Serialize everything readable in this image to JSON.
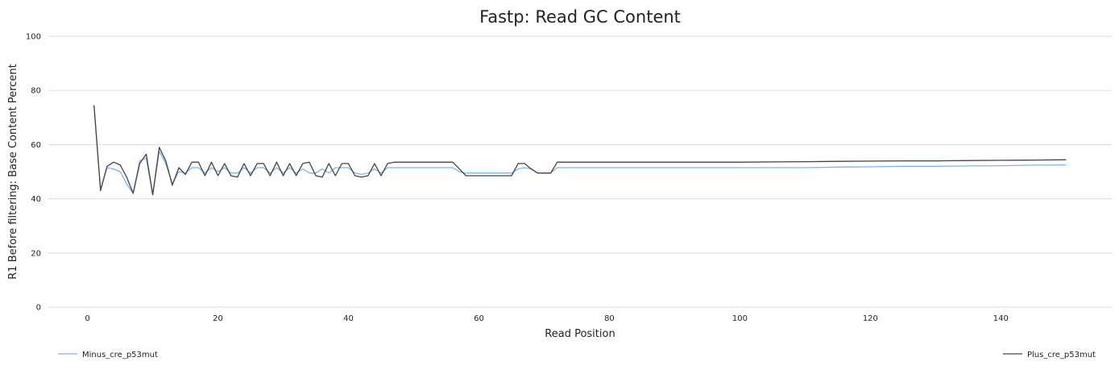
{
  "chart_data": {
    "type": "line",
    "title": "Fastp: Read GC Content",
    "xlabel": "Read Position",
    "ylabel": "R1 Before filtering: Base Content Percent",
    "xlim": [
      -6,
      157
    ],
    "ylim": [
      0,
      100
    ],
    "xticks": [
      0,
      20,
      40,
      60,
      80,
      100,
      120,
      140
    ],
    "yticks": [
      0,
      20,
      40,
      60,
      80,
      100
    ],
    "grid": "horizontal",
    "legend_placement": "bottom",
    "series": [
      {
        "name": "Minus_cre_p53mut",
        "color": "#7cb5ec",
        "points": [
          [
            1,
            74.5
          ],
          [
            2,
            43.5
          ],
          [
            3,
            51.5
          ],
          [
            4,
            51
          ],
          [
            5,
            50
          ],
          [
            6,
            45.5
          ],
          [
            7,
            42
          ],
          [
            8,
            54
          ],
          [
            9,
            55
          ],
          [
            10,
            41.5
          ],
          [
            11,
            57.5
          ],
          [
            12,
            53
          ],
          [
            13,
            45.5
          ],
          [
            14,
            50
          ],
          [
            15,
            49.5
          ],
          [
            16,
            51.5
          ],
          [
            17,
            51.5
          ],
          [
            18,
            49.5
          ],
          [
            19,
            51.5
          ],
          [
            20,
            50
          ],
          [
            21,
            51.5
          ],
          [
            22,
            49.5
          ],
          [
            23,
            49.5
          ],
          [
            24,
            51.5
          ],
          [
            25,
            49.5
          ],
          [
            26,
            51.5
          ],
          [
            27,
            51.5
          ],
          [
            28,
            49.5
          ],
          [
            29,
            51.5
          ],
          [
            30,
            49.5
          ],
          [
            31,
            51.5
          ],
          [
            32,
            49.5
          ],
          [
            33,
            51
          ],
          [
            34,
            49.5
          ],
          [
            35,
            49.5
          ],
          [
            36,
            51
          ],
          [
            37,
            49.5
          ],
          [
            38,
            51.5
          ],
          [
            39,
            51.5
          ],
          [
            40,
            51.5
          ],
          [
            41,
            49.5
          ],
          [
            42,
            49
          ],
          [
            43,
            49.5
          ],
          [
            44,
            51
          ],
          [
            45,
            49.5
          ],
          [
            46,
            51.5
          ],
          [
            47,
            51.5
          ],
          [
            48,
            51.5
          ],
          [
            49,
            51.5
          ],
          [
            50,
            51.5
          ],
          [
            51,
            51.5
          ],
          [
            52,
            51.5
          ],
          [
            53,
            51.5
          ],
          [
            54,
            51.5
          ],
          [
            55,
            51.5
          ],
          [
            56,
            51.5
          ],
          [
            57,
            50
          ],
          [
            58,
            49.5
          ],
          [
            59,
            49.5
          ],
          [
            60,
            49.5
          ],
          [
            61,
            49.5
          ],
          [
            62,
            49.5
          ],
          [
            63,
            49.5
          ],
          [
            64,
            49.5
          ],
          [
            65,
            49.5
          ],
          [
            66,
            51
          ],
          [
            67,
            51.5
          ],
          [
            68,
            51
          ],
          [
            69,
            49.5
          ],
          [
            70,
            49.5
          ],
          [
            71,
            49.5
          ],
          [
            72,
            51.5
          ],
          [
            73,
            51.5
          ],
          [
            74,
            51.5
          ],
          [
            75,
            51.5
          ],
          [
            76,
            51.5
          ],
          [
            77,
            51.5
          ],
          [
            78,
            51.5
          ],
          [
            79,
            51.5
          ],
          [
            80,
            51.5
          ],
          [
            85,
            51.5
          ],
          [
            90,
            51.5
          ],
          [
            95,
            51.5
          ],
          [
            100,
            51.5
          ],
          [
            105,
            51.5
          ],
          [
            110,
            51.5
          ],
          [
            115,
            51.7
          ],
          [
            120,
            51.8
          ],
          [
            125,
            52
          ],
          [
            130,
            52
          ],
          [
            135,
            52.1
          ],
          [
            140,
            52.2
          ],
          [
            145,
            52.4
          ],
          [
            150,
            52.5
          ]
        ]
      },
      {
        "name": "Plus_cre_p53mut",
        "color": "#434348",
        "points": [
          [
            1,
            74.5
          ],
          [
            2,
            43
          ],
          [
            3,
            52
          ],
          [
            4,
            53.5
          ],
          [
            5,
            52.5
          ],
          [
            6,
            48
          ],
          [
            7,
            42
          ],
          [
            8,
            53
          ],
          [
            9,
            56.5
          ],
          [
            10,
            41.5
          ],
          [
            11,
            59
          ],
          [
            12,
            54
          ],
          [
            13,
            45
          ],
          [
            14,
            51.5
          ],
          [
            15,
            49
          ],
          [
            16,
            53.5
          ],
          [
            17,
            53.5
          ],
          [
            18,
            48.5
          ],
          [
            19,
            53.5
          ],
          [
            20,
            48.5
          ],
          [
            21,
            53
          ],
          [
            22,
            48.5
          ],
          [
            23,
            48
          ],
          [
            24,
            53
          ],
          [
            25,
            48.5
          ],
          [
            26,
            53
          ],
          [
            27,
            53
          ],
          [
            28,
            48.5
          ],
          [
            29,
            53.5
          ],
          [
            30,
            48.5
          ],
          [
            31,
            53
          ],
          [
            32,
            48.5
          ],
          [
            33,
            53
          ],
          [
            34,
            53.5
          ],
          [
            35,
            48.5
          ],
          [
            36,
            48
          ],
          [
            37,
            53
          ],
          [
            38,
            48.5
          ],
          [
            39,
            53
          ],
          [
            40,
            53
          ],
          [
            41,
            48.5
          ],
          [
            42,
            48
          ],
          [
            43,
            48.5
          ],
          [
            44,
            53
          ],
          [
            45,
            48.5
          ],
          [
            46,
            53
          ],
          [
            47,
            53.5
          ],
          [
            48,
            53.5
          ],
          [
            49,
            53.5
          ],
          [
            50,
            53.5
          ],
          [
            51,
            53.5
          ],
          [
            52,
            53.5
          ],
          [
            53,
            53.5
          ],
          [
            54,
            53.5
          ],
          [
            55,
            53.5
          ],
          [
            56,
            53.5
          ],
          [
            57,
            51
          ],
          [
            58,
            48.5
          ],
          [
            59,
            48.5
          ],
          [
            60,
            48.5
          ],
          [
            61,
            48.5
          ],
          [
            62,
            48.5
          ],
          [
            63,
            48.5
          ],
          [
            64,
            48.5
          ],
          [
            65,
            48.5
          ],
          [
            66,
            53
          ],
          [
            67,
            53
          ],
          [
            68,
            51
          ],
          [
            69,
            49.5
          ],
          [
            70,
            49.5
          ],
          [
            71,
            49.5
          ],
          [
            72,
            53.5
          ],
          [
            73,
            53.5
          ],
          [
            74,
            53.5
          ],
          [
            75,
            53.5
          ],
          [
            76,
            53.5
          ],
          [
            77,
            53.5
          ],
          [
            78,
            53.5
          ],
          [
            79,
            53.5
          ],
          [
            80,
            53.5
          ],
          [
            85,
            53.5
          ],
          [
            90,
            53.5
          ],
          [
            95,
            53.5
          ],
          [
            100,
            53.5
          ],
          [
            105,
            53.6
          ],
          [
            110,
            53.7
          ],
          [
            115,
            53.8
          ],
          [
            120,
            53.9
          ],
          [
            125,
            54
          ],
          [
            130,
            54
          ],
          [
            135,
            54.1
          ],
          [
            140,
            54.2
          ],
          [
            145,
            54.3
          ],
          [
            150,
            54.4
          ]
        ]
      }
    ]
  }
}
